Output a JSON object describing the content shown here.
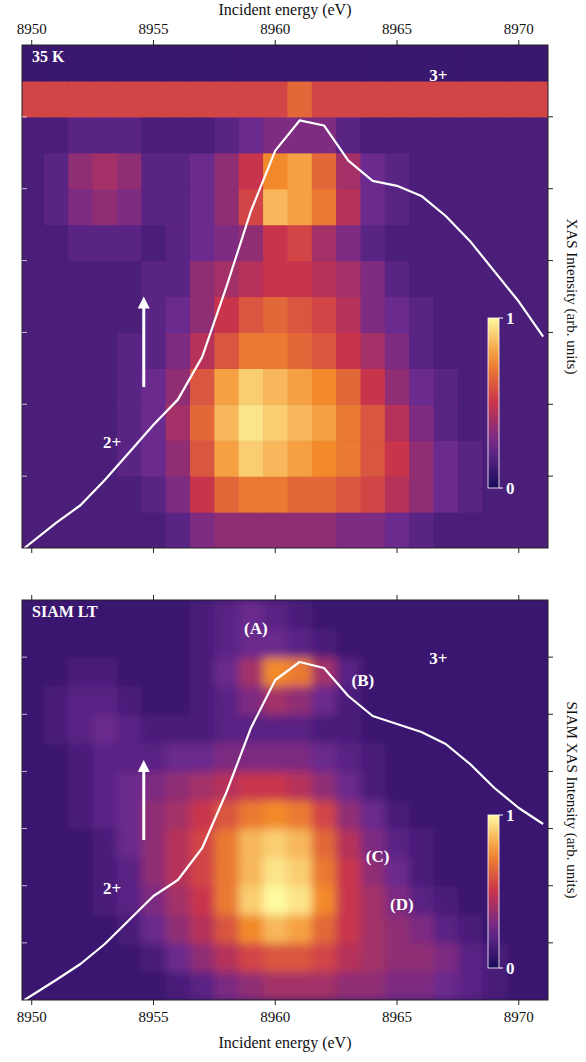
{
  "chart_data": [
    {
      "type": "heatmap",
      "title": "35 K",
      "x_label": "Incident energy (eV)",
      "y2_label": "XAS Intensity (arb. units)",
      "xlim": [
        8949.6,
        8971.2
      ],
      "xticks": [
        8950,
        8955,
        8960,
        8965,
        8970
      ],
      "ylim": [
        0,
        7
      ],
      "yticks": [
        1,
        2,
        3,
        4,
        5,
        6
      ],
      "y2lim": [
        0,
        1
      ],
      "tick_labels": "x",
      "x": [
        8950,
        8951,
        8952,
        8953,
        8954,
        8955,
        8956,
        8957,
        8958,
        8959,
        8960,
        8961,
        8962,
        8963,
        8964,
        8965,
        8966,
        8967,
        8968,
        8969,
        8970,
        8971
      ],
      "y": [
        0.25,
        0.75,
        1.25,
        1.75,
        2.25,
        2.75,
        3.25,
        3.75,
        4.25,
        4.75,
        5.25,
        5.75,
        6.25,
        6.75
      ],
      "z": [
        [
          0.15,
          0.15,
          0.15,
          0.15,
          0.15,
          0.15,
          0.2,
          0.3,
          0.35,
          0.35,
          0.35,
          0.35,
          0.35,
          0.3,
          0.3,
          0.25,
          0.2,
          0.15,
          0.15,
          0.15,
          0.15,
          0.15
        ],
        [
          0.15,
          0.15,
          0.15,
          0.15,
          0.15,
          0.2,
          0.3,
          0.5,
          0.65,
          0.7,
          0.7,
          0.65,
          0.65,
          0.6,
          0.55,
          0.45,
          0.35,
          0.25,
          0.2,
          0.15,
          0.15,
          0.15
        ],
        [
          0.15,
          0.15,
          0.15,
          0.15,
          0.2,
          0.25,
          0.35,
          0.6,
          0.8,
          0.9,
          0.85,
          0.8,
          0.75,
          0.7,
          0.6,
          0.5,
          0.35,
          0.25,
          0.2,
          0.15,
          0.15,
          0.15
        ],
        [
          0.15,
          0.15,
          0.15,
          0.15,
          0.2,
          0.25,
          0.4,
          0.65,
          0.85,
          0.95,
          0.9,
          0.85,
          0.8,
          0.7,
          0.6,
          0.45,
          0.3,
          0.2,
          0.15,
          0.15,
          0.15,
          0.15
        ],
        [
          0.15,
          0.15,
          0.15,
          0.15,
          0.2,
          0.25,
          0.35,
          0.6,
          0.8,
          0.9,
          0.85,
          0.8,
          0.75,
          0.65,
          0.5,
          0.35,
          0.25,
          0.2,
          0.15,
          0.15,
          0.15,
          0.15
        ],
        [
          0.15,
          0.15,
          0.15,
          0.15,
          0.2,
          0.2,
          0.3,
          0.45,
          0.6,
          0.7,
          0.7,
          0.65,
          0.6,
          0.5,
          0.4,
          0.3,
          0.2,
          0.15,
          0.15,
          0.15,
          0.15,
          0.15
        ],
        [
          0.15,
          0.15,
          0.15,
          0.15,
          0.15,
          0.2,
          0.25,
          0.35,
          0.5,
          0.6,
          0.65,
          0.6,
          0.55,
          0.45,
          0.3,
          0.25,
          0.2,
          0.15,
          0.15,
          0.15,
          0.15,
          0.15
        ],
        [
          0.15,
          0.15,
          0.15,
          0.15,
          0.15,
          0.2,
          0.2,
          0.35,
          0.4,
          0.45,
          0.5,
          0.5,
          0.45,
          0.4,
          0.3,
          0.2,
          0.15,
          0.15,
          0.15,
          0.15,
          0.15,
          0.15
        ],
        [
          0.15,
          0.15,
          0.2,
          0.2,
          0.2,
          0.15,
          0.2,
          0.25,
          0.3,
          0.35,
          0.5,
          0.55,
          0.4,
          0.3,
          0.2,
          0.15,
          0.15,
          0.15,
          0.15,
          0.15,
          0.15,
          0.15
        ],
        [
          0.15,
          0.2,
          0.3,
          0.35,
          0.3,
          0.2,
          0.2,
          0.25,
          0.35,
          0.55,
          0.85,
          0.8,
          0.7,
          0.45,
          0.25,
          0.2,
          0.15,
          0.15,
          0.15,
          0.15,
          0.15,
          0.15
        ],
        [
          0.15,
          0.2,
          0.35,
          0.4,
          0.35,
          0.2,
          0.2,
          0.25,
          0.35,
          0.5,
          0.75,
          0.8,
          0.65,
          0.4,
          0.25,
          0.2,
          0.15,
          0.15,
          0.15,
          0.15,
          0.15,
          0.15
        ],
        [
          0.15,
          0.15,
          0.2,
          0.2,
          0.2,
          0.15,
          0.15,
          0.15,
          0.2,
          0.25,
          0.3,
          0.3,
          0.3,
          0.2,
          0.15,
          0.15,
          0.15,
          0.15,
          0.15,
          0.15,
          0.15,
          0.15
        ],
        [
          0.55,
          0.55,
          0.55,
          0.55,
          0.55,
          0.55,
          0.55,
          0.55,
          0.55,
          0.55,
          0.55,
          0.65,
          0.55,
          0.55,
          0.55,
          0.55,
          0.55,
          0.55,
          0.55,
          0.55,
          0.55,
          0.55
        ],
        [
          0.1,
          0.1,
          0.1,
          0.1,
          0.1,
          0.1,
          0.1,
          0.1,
          0.1,
          0.1,
          0.1,
          0.1,
          0.1,
          0.1,
          0.1,
          0.1,
          0.1,
          0.1,
          0.1,
          0.1,
          0.1,
          0.1
        ]
      ],
      "colorbar": {
        "range": [
          0,
          1
        ],
        "ticks": [
          1,
          0
        ]
      },
      "series": [
        {
          "type": "line",
          "color": "#ffffff",
          "axis": "y2",
          "x": [
            8949.7,
            8951,
            8952,
            8953,
            8954,
            8955,
            8956,
            8957,
            8958,
            8959,
            8960,
            8961,
            8962,
            8963,
            8964,
            8965,
            8966,
            8967,
            8968,
            8969,
            8970,
            8971
          ],
          "values": [
            0,
            0.05,
            0.085,
            0.135,
            0.19,
            0.245,
            0.295,
            0.38,
            0.52,
            0.67,
            0.79,
            0.85,
            0.84,
            0.77,
            0.73,
            0.72,
            0.7,
            0.66,
            0.61,
            0.55,
            0.49,
            0.42
          ]
        }
      ],
      "annotations": [
        "3+",
        "2+"
      ]
    },
    {
      "type": "heatmap",
      "title": "SIAM LT",
      "x_label": "Incident energy (eV)",
      "y2_label": "SIAM XAS Intensity (arb. units)",
      "xlim": [
        8949.6,
        8971.2
      ],
      "xticks": [
        8950,
        8955,
        8960,
        8965,
        8970
      ],
      "ylim": [
        0,
        7
      ],
      "yticks": [
        1,
        2,
        3,
        4,
        5,
        6
      ],
      "y2lim": [
        0,
        1
      ],
      "tick_labels": "x",
      "x": [
        8950,
        8951,
        8952,
        8953,
        8954,
        8955,
        8956,
        8957,
        8958,
        8959,
        8960,
        8961,
        8962,
        8963,
        8964,
        8965,
        8966,
        8967,
        8968,
        8969,
        8970,
        8971
      ],
      "y": [
        0.25,
        0.75,
        1.25,
        1.75,
        2.25,
        2.75,
        3.25,
        3.75,
        4.25,
        4.75,
        5.25,
        5.75,
        6.25,
        6.75
      ],
      "z": [
        [
          0.1,
          0.1,
          0.1,
          0.1,
          0.1,
          0.1,
          0.15,
          0.2,
          0.3,
          0.35,
          0.4,
          0.4,
          0.4,
          0.35,
          0.35,
          0.3,
          0.3,
          0.25,
          0.2,
          0.15,
          0.1,
          0.1
        ],
        [
          0.1,
          0.1,
          0.1,
          0.1,
          0.1,
          0.15,
          0.25,
          0.35,
          0.45,
          0.55,
          0.6,
          0.6,
          0.55,
          0.45,
          0.4,
          0.35,
          0.35,
          0.3,
          0.2,
          0.15,
          0.1,
          0.1
        ],
        [
          0.1,
          0.1,
          0.1,
          0.1,
          0.15,
          0.25,
          0.35,
          0.45,
          0.6,
          0.75,
          0.85,
          0.8,
          0.65,
          0.5,
          0.4,
          0.35,
          0.3,
          0.2,
          0.15,
          0.1,
          0.1,
          0.1
        ],
        [
          0.1,
          0.1,
          0.1,
          0.15,
          0.2,
          0.3,
          0.4,
          0.5,
          0.7,
          0.9,
          1.0,
          0.95,
          0.75,
          0.5,
          0.4,
          0.3,
          0.2,
          0.15,
          0.1,
          0.1,
          0.1,
          0.1
        ],
        [
          0.1,
          0.1,
          0.1,
          0.15,
          0.2,
          0.35,
          0.45,
          0.55,
          0.7,
          0.85,
          0.95,
          0.9,
          0.7,
          0.5,
          0.35,
          0.25,
          0.15,
          0.1,
          0.1,
          0.1,
          0.1,
          0.1
        ],
        [
          0.1,
          0.1,
          0.1,
          0.15,
          0.25,
          0.35,
          0.45,
          0.55,
          0.7,
          0.85,
          0.9,
          0.85,
          0.65,
          0.45,
          0.3,
          0.2,
          0.15,
          0.1,
          0.1,
          0.1,
          0.1,
          0.1
        ],
        [
          0.1,
          0.1,
          0.15,
          0.2,
          0.25,
          0.35,
          0.4,
          0.5,
          0.6,
          0.7,
          0.75,
          0.7,
          0.55,
          0.35,
          0.25,
          0.15,
          0.1,
          0.1,
          0.1,
          0.1,
          0.1,
          0.1
        ],
        [
          0.1,
          0.1,
          0.15,
          0.2,
          0.25,
          0.3,
          0.35,
          0.4,
          0.45,
          0.5,
          0.5,
          0.45,
          0.35,
          0.25,
          0.15,
          0.1,
          0.1,
          0.1,
          0.1,
          0.1,
          0.1,
          0.1
        ],
        [
          0.1,
          0.1,
          0.15,
          0.2,
          0.2,
          0.2,
          0.25,
          0.25,
          0.3,
          0.3,
          0.3,
          0.3,
          0.25,
          0.2,
          0.15,
          0.1,
          0.1,
          0.1,
          0.1,
          0.1,
          0.1,
          0.1
        ],
        [
          0.1,
          0.15,
          0.2,
          0.25,
          0.2,
          0.15,
          0.15,
          0.15,
          0.2,
          0.2,
          0.2,
          0.2,
          0.15,
          0.15,
          0.1,
          0.1,
          0.1,
          0.1,
          0.1,
          0.1,
          0.1,
          0.1
        ],
        [
          0.1,
          0.15,
          0.2,
          0.2,
          0.15,
          0.1,
          0.1,
          0.15,
          0.2,
          0.3,
          0.4,
          0.35,
          0.25,
          0.15,
          0.1,
          0.1,
          0.1,
          0.1,
          0.1,
          0.1,
          0.1,
          0.1
        ],
        [
          0.1,
          0.1,
          0.15,
          0.15,
          0.1,
          0.1,
          0.1,
          0.15,
          0.25,
          0.4,
          0.75,
          0.7,
          0.4,
          0.2,
          0.1,
          0.1,
          0.1,
          0.1,
          0.1,
          0.1,
          0.1,
          0.1
        ],
        [
          0.1,
          0.1,
          0.1,
          0.1,
          0.1,
          0.1,
          0.1,
          0.15,
          0.2,
          0.25,
          0.25,
          0.2,
          0.15,
          0.1,
          0.1,
          0.1,
          0.1,
          0.1,
          0.1,
          0.1,
          0.1,
          0.1
        ],
        [
          0.1,
          0.1,
          0.1,
          0.1,
          0.1,
          0.1,
          0.1,
          0.15,
          0.2,
          0.25,
          0.2,
          0.15,
          0.1,
          0.1,
          0.1,
          0.1,
          0.1,
          0.1,
          0.1,
          0.1,
          0.1,
          0.1
        ]
      ],
      "colorbar": {
        "range": [
          0,
          1
        ],
        "ticks": [
          1,
          0
        ]
      },
      "series": [
        {
          "type": "line",
          "color": "#ffffff",
          "axis": "y2",
          "x": [
            8949.7,
            8951,
            8952,
            8953,
            8954,
            8955,
            8956,
            8957,
            8958,
            8959,
            8960,
            8961,
            8962,
            8963,
            8964,
            8965,
            8966,
            8967,
            8968,
            8969,
            8970,
            8971
          ],
          "values": [
            0,
            0.05,
            0.09,
            0.14,
            0.2,
            0.26,
            0.3,
            0.38,
            0.52,
            0.68,
            0.8,
            0.845,
            0.83,
            0.76,
            0.71,
            0.69,
            0.67,
            0.64,
            0.59,
            0.53,
            0.48,
            0.44
          ]
        }
      ],
      "annotations": [
        "(A)",
        "(B)",
        "(C)",
        "(D)",
        "3+",
        "2+"
      ]
    }
  ]
}
